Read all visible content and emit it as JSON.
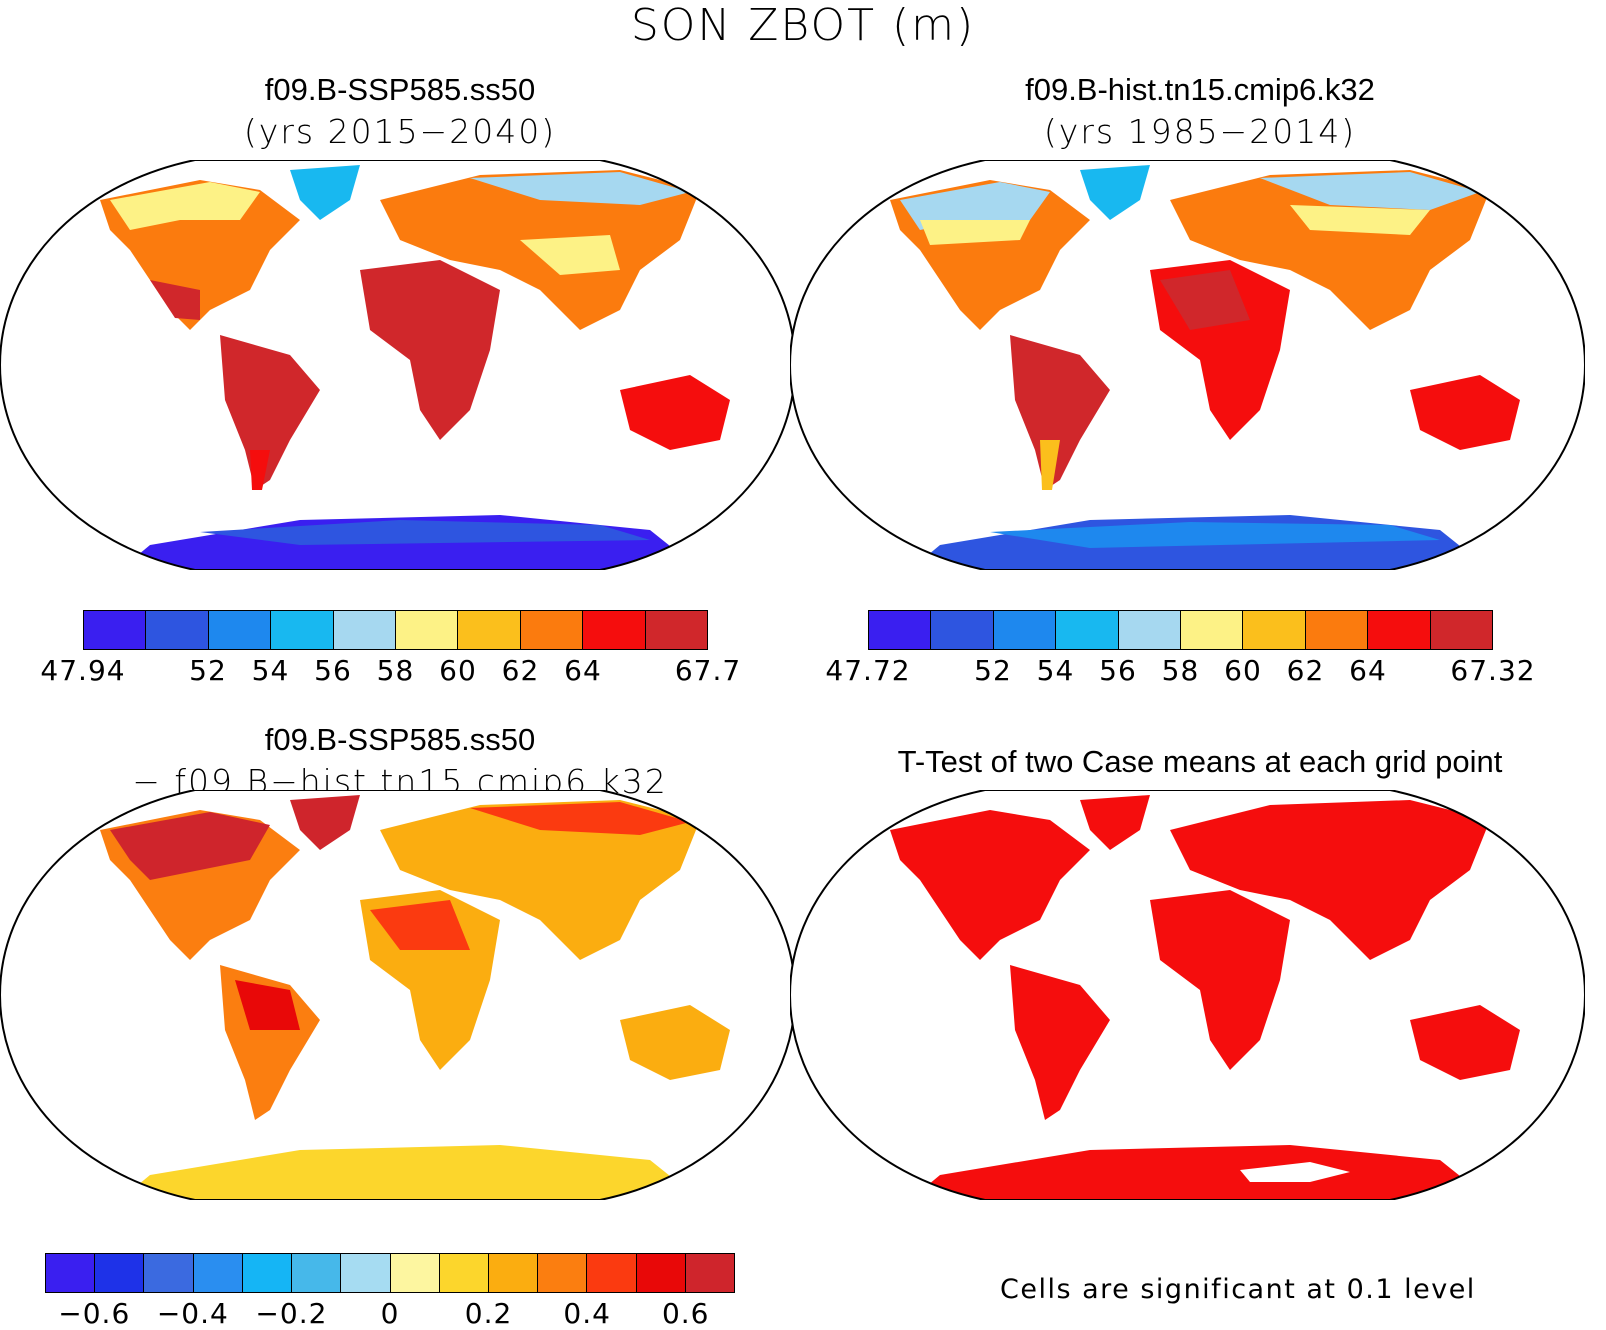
{
  "title": "SON ZBOT (m)",
  "panels": {
    "top_left": {
      "title": "f09.B-SSP585.ss50",
      "subtitle": "(yrs 2015−2040)",
      "colorbar": {
        "colors": [
          "#3a1ff0",
          "#2e55e0",
          "#1e88ee",
          "#18b8f0",
          "#a6d8f0",
          "#fdf286",
          "#fbbf1c",
          "#fb7b0e",
          "#f50d0d",
          "#d0272b"
        ],
        "labels": [
          "47.94",
          "52",
          "54",
          "56",
          "58",
          "60",
          "62",
          "64",
          "67.7"
        ],
        "label_positions": [
          0,
          2,
          3,
          4,
          5,
          6,
          7,
          8,
          10
        ]
      }
    },
    "top_right": {
      "title": "f09.B-hist.tn15.cmip6.k32",
      "subtitle": "(yrs 1985−2014)",
      "colorbar": {
        "colors": [
          "#3a1ff0",
          "#2e55e0",
          "#1e88ee",
          "#18b8f0",
          "#a6d8f0",
          "#fdf286",
          "#fbbf1c",
          "#fb7b0e",
          "#f50d0d",
          "#d0272b"
        ],
        "labels": [
          "47.72",
          "52",
          "54",
          "56",
          "58",
          "60",
          "62",
          "64",
          "67.32"
        ],
        "label_positions": [
          0,
          2,
          3,
          4,
          5,
          6,
          7,
          8,
          10
        ]
      }
    },
    "bottom_left": {
      "title": "f09.B-SSP585.ss50",
      "subtitle": "− f09.B−hist.tn15.cmip6.k32",
      "colorbar": {
        "colors": [
          "#3a1ff0",
          "#1e32e8",
          "#3b6ae0",
          "#2a8ef0",
          "#15b5f5",
          "#46b8ea",
          "#a6dcf2",
          "#fdf6a0",
          "#fcd62c",
          "#fbad10",
          "#fb7e10",
          "#fb3a10",
          "#e80808",
          "#cf252c"
        ],
        "labels": [
          "−0.6",
          "−0.4",
          "−0.2",
          "0",
          "0.2",
          "0.4",
          "0.6"
        ],
        "label_positions": [
          1,
          3,
          5,
          7,
          9,
          11,
          13
        ]
      }
    },
    "bottom_right": {
      "title": "T-Test of two Case means at each grid point",
      "note": "Cells are significant at 0.1 level"
    }
  }
}
